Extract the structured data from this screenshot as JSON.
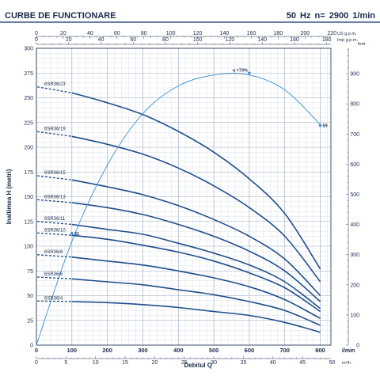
{
  "header": {
    "title": "CURBE DE FUNCTIONARE",
    "spec": "50 Hz   n= 2900  1/min"
  },
  "chart_data": {
    "type": "line",
    "xlabel": "Debitul Q",
    "ylabel": "Inaltimea H (metri)",
    "x_unit_bottom": "m³/h",
    "x_unit_main": "l/min",
    "x_unit_us": "US g.p.m.",
    "x_unit_imp": "Imp g.p.m.",
    "y_unit_right": "feet",
    "xlim": [
      0,
      830
    ],
    "ylim": [
      0,
      300
    ],
    "x_ticks": [
      0,
      100,
      200,
      300,
      400,
      500,
      600,
      700,
      800
    ],
    "y_ticks": [
      0,
      25,
      50,
      75,
      100,
      125,
      150,
      175,
      200,
      225,
      250,
      275,
      300
    ],
    "m3h_ticks": [
      "0",
      "5",
      "10",
      "15",
      "20",
      "25",
      "30",
      "35",
      "40",
      "45",
      "50"
    ],
    "us_gpm_ticks": [
      "0",
      "20",
      "40",
      "60",
      "80",
      "100",
      "120",
      "140",
      "160",
      "180",
      "200",
      "220"
    ],
    "imp_gpm_ticks": [
      "0",
      "20",
      "40",
      "60",
      "80",
      "100",
      "120",
      "140",
      "160",
      "180"
    ],
    "feet_ticks": [
      "0",
      "100",
      "200",
      "300",
      "400",
      "500",
      "600",
      "700",
      "800",
      "900"
    ],
    "series": [
      {
        "name": "6SR36/23",
        "x": [
          100,
          200,
          300,
          400,
          500,
          600,
          700,
          800
        ],
        "y": [
          255,
          245,
          233,
          216,
          195,
          168,
          133,
          77
        ]
      },
      {
        "name": "6SR36/19",
        "x": [
          100,
          200,
          300,
          400,
          500,
          600,
          700,
          800
        ],
        "y": [
          211,
          203,
          193,
          179,
          161,
          139,
          110,
          64
        ]
      },
      {
        "name": "6SR36/15",
        "x": [
          100,
          200,
          300,
          400,
          500,
          600,
          700,
          800
        ],
        "y": [
          167,
          160,
          152,
          141,
          127,
          110,
          87,
          50
        ]
      },
      {
        "name": "6SR36/13",
        "x": [
          100,
          200,
          300,
          400,
          500,
          600,
          700,
          800
        ],
        "y": [
          144,
          139,
          132,
          122,
          110,
          95,
          75,
          44
        ]
      },
      {
        "name": "6SR36/11",
        "x": [
          100,
          200,
          300,
          400,
          500,
          600,
          700,
          800
        ],
        "y": [
          122,
          117,
          112,
          103,
          93,
          81,
          64,
          37
        ]
      },
      {
        "name": "6SR36/10",
        "x": [
          100,
          200,
          300,
          400,
          500,
          600,
          700,
          800
        ],
        "y": [
          111,
          107,
          101,
          94,
          85,
          73,
          58,
          34
        ]
      },
      {
        "name": "6SR36/8",
        "x": [
          100,
          200,
          300,
          400,
          500,
          600,
          700,
          800
        ],
        "y": [
          89,
          85,
          81,
          75,
          68,
          59,
          46,
          27
        ]
      },
      {
        "name": "6SR36/6",
        "x": [
          100,
          200,
          300,
          400,
          500,
          600,
          700,
          800
        ],
        "y": [
          67,
          64,
          61,
          56,
          51,
          44,
          35,
          20
        ]
      },
      {
        "name": "6SR36/4",
        "x": [
          100,
          200,
          300,
          400,
          500,
          600,
          700,
          800
        ],
        "y": [
          44,
          43,
          41,
          38,
          34,
          30,
          23,
          13
        ]
      }
    ],
    "efficiency": {
      "x": [
        0,
        100,
        200,
        300,
        400,
        500,
        600,
        700,
        800
      ],
      "y": [
        0,
        105,
        182,
        234,
        262,
        273,
        273,
        258,
        223
      ],
      "markers": [
        {
          "x": 100,
          "y": 113,
          "label": "31"
        },
        {
          "x": 600,
          "y": 275,
          "label": "η =73%"
        },
        {
          "x": 800,
          "y": 222,
          "label": "59"
        }
      ]
    }
  }
}
